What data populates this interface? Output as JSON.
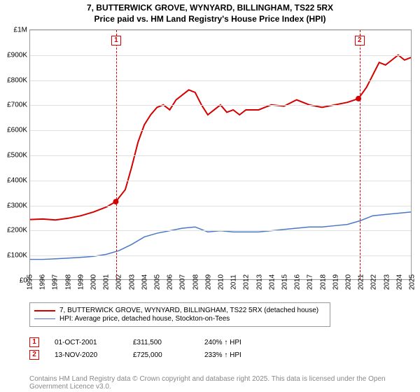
{
  "title_line1": "7, BUTTERWICK GROVE, WYNYARD, BILLINGHAM, TS22 5RX",
  "title_line2": "Price paid vs. HM Land Registry's House Price Index (HPI)",
  "chart": {
    "type": "line",
    "x_start_year": 1995,
    "x_end_year": 2025,
    "x_tick_step": 1,
    "y_min": 0,
    "y_max": 1000000,
    "y_tick_step": 100000,
    "y_tick_labels": [
      "£0",
      "£100K",
      "£200K",
      "£300K",
      "£400K",
      "£500K",
      "£600K",
      "£700K",
      "£800K",
      "£900K",
      "£1M"
    ],
    "grid_color": "#e0e0e0",
    "background": "#ffffff",
    "series": [
      {
        "name": "property-price",
        "label": "7, BUTTERWICK GROVE, WYNYARD, BILLINGHAM, TS22 5RX (detached house)",
        "color": "#d40000",
        "line_width": 2,
        "points": [
          [
            1995.0,
            240000
          ],
          [
            1996.0,
            242000
          ],
          [
            1997.0,
            238000
          ],
          [
            1998.0,
            245000
          ],
          [
            1999.0,
            255000
          ],
          [
            2000.0,
            270000
          ],
          [
            2001.0,
            290000
          ],
          [
            2001.75,
            311500
          ],
          [
            2002.5,
            360000
          ],
          [
            2003.0,
            450000
          ],
          [
            2003.5,
            550000
          ],
          [
            2004.0,
            620000
          ],
          [
            2004.5,
            660000
          ],
          [
            2005.0,
            690000
          ],
          [
            2005.5,
            700000
          ],
          [
            2006.0,
            680000
          ],
          [
            2006.5,
            720000
          ],
          [
            2007.0,
            740000
          ],
          [
            2007.5,
            760000
          ],
          [
            2008.0,
            750000
          ],
          [
            2008.5,
            700000
          ],
          [
            2009.0,
            660000
          ],
          [
            2009.5,
            680000
          ],
          [
            2010.0,
            700000
          ],
          [
            2010.5,
            670000
          ],
          [
            2011.0,
            680000
          ],
          [
            2011.5,
            660000
          ],
          [
            2012.0,
            680000
          ],
          [
            2013.0,
            680000
          ],
          [
            2014.0,
            700000
          ],
          [
            2015.0,
            695000
          ],
          [
            2016.0,
            720000
          ],
          [
            2017.0,
            700000
          ],
          [
            2018.0,
            690000
          ],
          [
            2019.0,
            700000
          ],
          [
            2020.0,
            710000
          ],
          [
            2020.87,
            725000
          ],
          [
            2021.5,
            770000
          ],
          [
            2022.0,
            820000
          ],
          [
            2022.5,
            870000
          ],
          [
            2023.0,
            860000
          ],
          [
            2023.5,
            880000
          ],
          [
            2024.0,
            900000
          ],
          [
            2024.5,
            880000
          ],
          [
            2025.0,
            890000
          ]
        ]
      },
      {
        "name": "hpi",
        "label": "HPI: Average price, detached house, Stockton-on-Tees",
        "color": "#4a78c4",
        "line_width": 1.5,
        "points": [
          [
            1995.0,
            80000
          ],
          [
            1996.0,
            80000
          ],
          [
            1997.0,
            82000
          ],
          [
            1998.0,
            85000
          ],
          [
            1999.0,
            88000
          ],
          [
            2000.0,
            92000
          ],
          [
            2001.0,
            100000
          ],
          [
            2002.0,
            115000
          ],
          [
            2003.0,
            140000
          ],
          [
            2004.0,
            170000
          ],
          [
            2005.0,
            185000
          ],
          [
            2006.0,
            195000
          ],
          [
            2007.0,
            205000
          ],
          [
            2008.0,
            210000
          ],
          [
            2009.0,
            190000
          ],
          [
            2010.0,
            195000
          ],
          [
            2011.0,
            190000
          ],
          [
            2012.0,
            190000
          ],
          [
            2013.0,
            190000
          ],
          [
            2014.0,
            195000
          ],
          [
            2015.0,
            200000
          ],
          [
            2016.0,
            205000
          ],
          [
            2017.0,
            210000
          ],
          [
            2018.0,
            210000
          ],
          [
            2019.0,
            215000
          ],
          [
            2020.0,
            220000
          ],
          [
            2021.0,
            235000
          ],
          [
            2022.0,
            255000
          ],
          [
            2023.0,
            260000
          ],
          [
            2024.0,
            265000
          ],
          [
            2025.0,
            270000
          ]
        ]
      }
    ],
    "sale_markers": [
      {
        "id": "1",
        "year": 2001.75,
        "value": 311500
      },
      {
        "id": "2",
        "year": 2020.87,
        "value": 725000
      }
    ]
  },
  "sales": [
    {
      "id": "1",
      "date": "01-OCT-2001",
      "price": "£311,500",
      "hpi_pct": "240% ↑ HPI"
    },
    {
      "id": "2",
      "date": "13-NOV-2020",
      "price": "£725,000",
      "hpi_pct": "233% ↑ HPI"
    }
  ],
  "attribution": "Contains HM Land Registry data © Crown copyright and database right 2025.\nThis data is licensed under the Open Government Licence v3.0."
}
